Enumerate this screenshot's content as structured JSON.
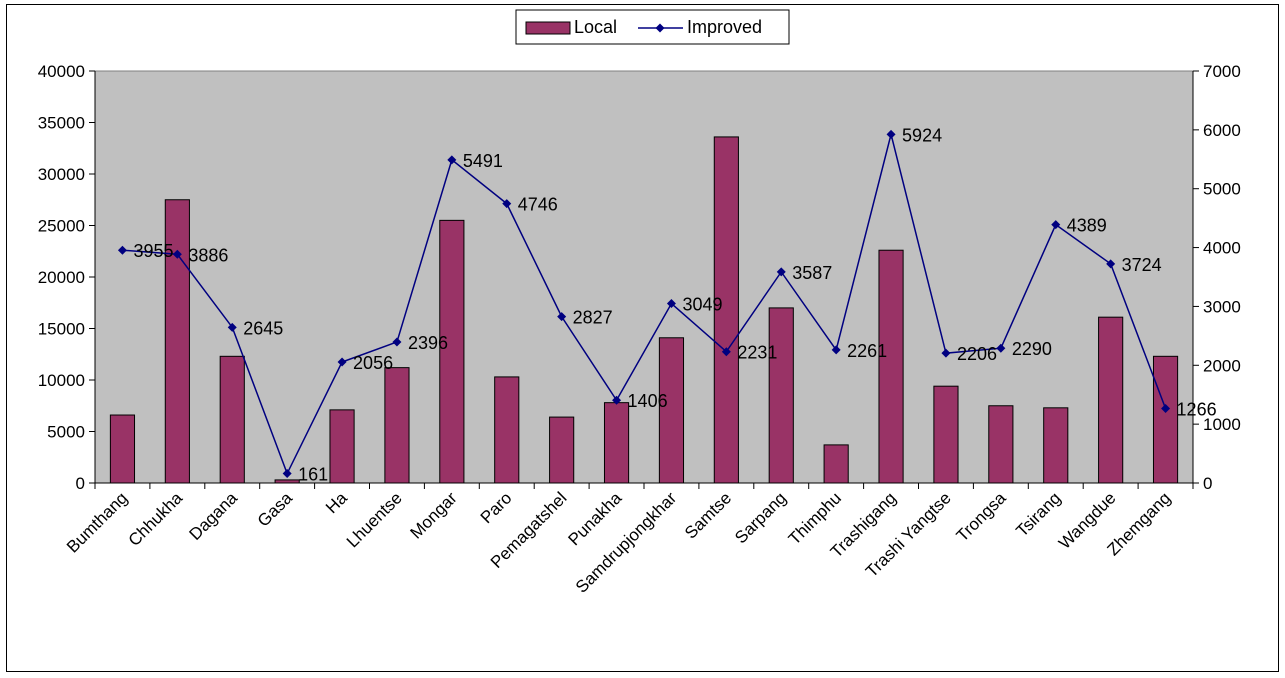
{
  "chart_data": {
    "type": "bar",
    "categories": [
      "Bumthang",
      "Chhukha",
      "Dagana",
      "Gasa",
      "Ha",
      "Lhuentse",
      "Mongar",
      "Paro",
      "Pemagatshel",
      "Punakha",
      "Samdrupjongkhar",
      "Samtse",
      "Sarpang",
      "Thimphu",
      "Trashigang",
      "Trashi Yangtse",
      "Trongsa",
      "Tsirang",
      "Wangdue",
      "Zhemgang"
    ],
    "series": [
      {
        "name": "Local",
        "type": "bar",
        "axis": "left",
        "color": "#993366",
        "values": [
          6600,
          27500,
          12300,
          300,
          7100,
          11200,
          25500,
          10300,
          6400,
          7800,
          14100,
          33600,
          17000,
          3700,
          22600,
          9400,
          7500,
          7300,
          16100,
          12300
        ]
      },
      {
        "name": "Improved",
        "type": "line",
        "axis": "right",
        "color": "#000080",
        "values": [
          3955,
          3886,
          2645,
          161,
          2056,
          2396,
          5491,
          4746,
          2827,
          1406,
          3049,
          2231,
          3587,
          2261,
          5924,
          2206,
          2290,
          4389,
          3724,
          1266
        ],
        "labels": [
          "3955",
          "3886",
          "2645",
          "161",
          "2056",
          "2396",
          "5491",
          "4746",
          "2827",
          "1406",
          "3049",
          "2231",
          "3587",
          "2261",
          "5924",
          "2206",
          "2290",
          "4389",
          "3724",
          "1266"
        ]
      }
    ],
    "y_left": {
      "lim": [
        0,
        40000
      ],
      "ticks": [
        "0",
        "5000",
        "10000",
        "15000",
        "20000",
        "25000",
        "30000",
        "35000",
        "40000"
      ]
    },
    "y_right": {
      "lim": [
        0,
        7000
      ],
      "ticks": [
        "0",
        "1000",
        "2000",
        "3000",
        "4000",
        "5000",
        "6000",
        "7000"
      ]
    },
    "legend": {
      "position": "top-center",
      "items": [
        "Local",
        "Improved"
      ]
    },
    "plot_background": "#c0c0c0",
    "grid": false
  }
}
